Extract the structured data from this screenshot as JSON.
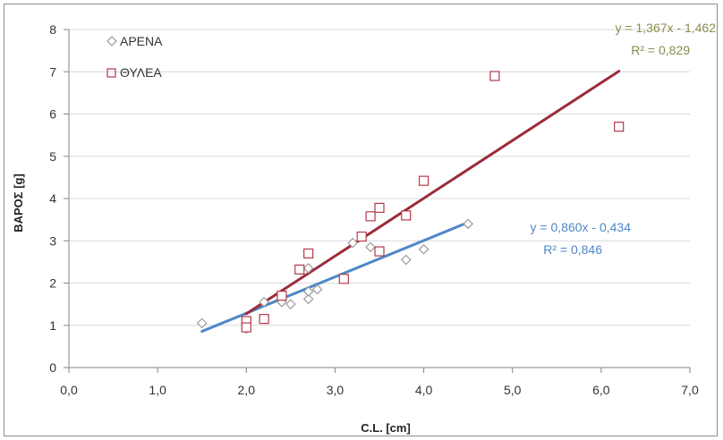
{
  "chart_data": {
    "type": "scatter",
    "xlabel": "C.L. [cm]",
    "ylabel": "ΒΑΡΟΣ [g]",
    "xlim": [
      0,
      7
    ],
    "ylim": [
      0,
      8
    ],
    "x_ticks": [
      "0,0",
      "1,0",
      "2,0",
      "3,0",
      "4,0",
      "5,0",
      "6,0",
      "7,0"
    ],
    "y_ticks": [
      "0",
      "1",
      "2",
      "3",
      "4",
      "5",
      "6",
      "7",
      "8"
    ],
    "grid": "horizontal",
    "legend_position": "top-left",
    "series": [
      {
        "name": "ΑΡΕΝΑ",
        "marker": "diamond",
        "marker_color": "#9b9b9b",
        "line_color": "#4f87c9",
        "points": [
          [
            1.5,
            1.05
          ],
          [
            2.0,
            0.92
          ],
          [
            2.2,
            1.55
          ],
          [
            2.4,
            1.55
          ],
          [
            2.5,
            1.5
          ],
          [
            2.7,
            2.35
          ],
          [
            2.7,
            1.62
          ],
          [
            2.7,
            1.8
          ],
          [
            2.8,
            1.85
          ],
          [
            3.2,
            2.95
          ],
          [
            3.4,
            2.85
          ],
          [
            3.8,
            2.55
          ],
          [
            4.0,
            2.8
          ],
          [
            4.5,
            3.4
          ]
        ],
        "trendline": {
          "x_range": [
            1.5,
            4.5
          ],
          "slope": 0.86,
          "intercept": -0.434,
          "equation": "y = 0,860x - 0,434",
          "r2": "R² = 0,846",
          "label_color": "#4f87c9"
        }
      },
      {
        "name": "ΘΥΛΕΑ",
        "marker": "square",
        "marker_color": "#b23a48",
        "line_color": "#9c2b3a",
        "points": [
          [
            2.0,
            1.1
          ],
          [
            2.0,
            0.95
          ],
          [
            2.2,
            1.15
          ],
          [
            2.4,
            1.7
          ],
          [
            2.6,
            2.32
          ],
          [
            2.7,
            2.7
          ],
          [
            3.1,
            2.1
          ],
          [
            3.3,
            3.1
          ],
          [
            3.4,
            3.58
          ],
          [
            3.5,
            3.78
          ],
          [
            3.5,
            2.75
          ],
          [
            3.8,
            3.6
          ],
          [
            4.0,
            4.42
          ],
          [
            4.8,
            6.9
          ],
          [
            6.2,
            5.7
          ]
        ],
        "trendline": {
          "x_range": [
            2.0,
            6.2
          ],
          "slope": 1.367,
          "intercept": -1.462,
          "equation": "y = 1,367x - 1,462",
          "r2": "R² = 0,829",
          "label_color": "#8a8c4e"
        }
      }
    ]
  }
}
